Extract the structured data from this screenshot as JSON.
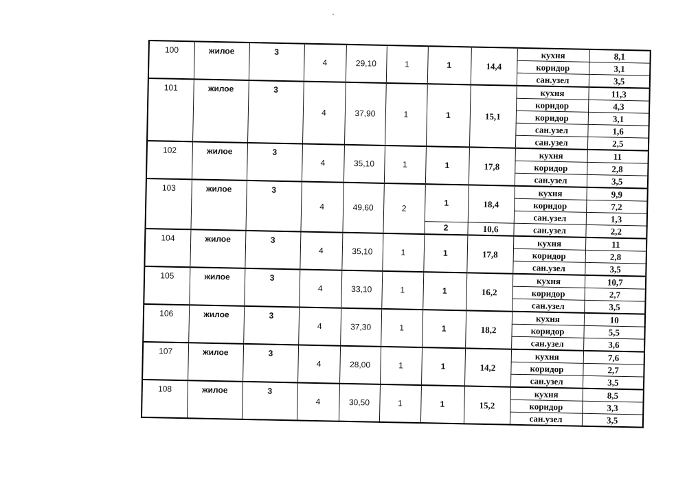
{
  "table": {
    "apartments": [
      {
        "id": "100",
        "type": "жилое",
        "floor": "3",
        "c4": "4",
        "area": "29,10",
        "rooms_count": "1",
        "rooms": [
          {
            "num": "1",
            "area": "14,4"
          }
        ],
        "extras": [
          {
            "name": "кухня",
            "value": "8,1"
          },
          {
            "name": "коридор",
            "value": "3,1"
          },
          {
            "name": "сан.узел",
            "value": "3,5"
          }
        ]
      },
      {
        "id": "101",
        "type": "жилое",
        "floor": "3",
        "c4": "4",
        "area": "37,90",
        "rooms_count": "1",
        "rooms": [
          {
            "num": "1",
            "area": "15,1"
          }
        ],
        "extras": [
          {
            "name": "кухня",
            "value": "11,3"
          },
          {
            "name": "коридор",
            "value": "4,3"
          },
          {
            "name": "коридор",
            "value": "3,1"
          },
          {
            "name": "сан.узел",
            "value": "1,6"
          },
          {
            "name": "сан.узел",
            "value": "2,5"
          }
        ]
      },
      {
        "id": "102",
        "type": "жилое",
        "floor": "3",
        "c4": "4",
        "area": "35,10",
        "rooms_count": "1",
        "rooms": [
          {
            "num": "1",
            "area": "17,8"
          }
        ],
        "extras": [
          {
            "name": "кухня",
            "value": "11"
          },
          {
            "name": "коридор",
            "value": "2,8"
          },
          {
            "name": "сан.узел",
            "value": "3,5"
          }
        ]
      },
      {
        "id": "103",
        "type": "жилое",
        "floor": "3",
        "c4": "4",
        "area": "49,60",
        "rooms_count": "2",
        "rooms": [
          {
            "num": "1",
            "area": "18,4",
            "span": 3
          },
          {
            "num": "2",
            "area": "10,6",
            "span": 1
          }
        ],
        "extras": [
          {
            "name": "кухня",
            "value": "9,9"
          },
          {
            "name": "коридор",
            "value": "7,2"
          },
          {
            "name": "сан.узел",
            "value": "1,3"
          },
          {
            "name": "сан.узел",
            "value": "2,2"
          }
        ]
      },
      {
        "id": "104",
        "type": "жилое",
        "floor": "3",
        "c4": "4",
        "area": "35,10",
        "rooms_count": "1",
        "rooms": [
          {
            "num": "1",
            "area": "17,8"
          }
        ],
        "extras": [
          {
            "name": "кухня",
            "value": "11"
          },
          {
            "name": "коридор",
            "value": "2,8"
          },
          {
            "name": "сан.узел",
            "value": "3,5"
          }
        ]
      },
      {
        "id": "105",
        "type": "жилое",
        "floor": "3",
        "c4": "4",
        "area": "33,10",
        "rooms_count": "1",
        "rooms": [
          {
            "num": "1",
            "area": "16,2"
          }
        ],
        "extras": [
          {
            "name": "кухня",
            "value": "10,7"
          },
          {
            "name": "коридор",
            "value": "2,7"
          },
          {
            "name": "сан.узел",
            "value": "3,5"
          }
        ]
      },
      {
        "id": "106",
        "type": "жилое",
        "floor": "3",
        "c4": "4",
        "area": "37,30",
        "rooms_count": "1",
        "rooms": [
          {
            "num": "1",
            "area": "18,2"
          }
        ],
        "extras": [
          {
            "name": "кухня",
            "value": "10"
          },
          {
            "name": "коридор",
            "value": "5,5"
          },
          {
            "name": "сан.узел",
            "value": "3,6"
          }
        ]
      },
      {
        "id": "107",
        "type": "жилое",
        "floor": "3",
        "c4": "4",
        "area": "28,00",
        "rooms_count": "1",
        "rooms": [
          {
            "num": "1",
            "area": "14,2"
          }
        ],
        "extras": [
          {
            "name": "кухня",
            "value": "7,6"
          },
          {
            "name": "коридор",
            "value": "2,7"
          },
          {
            "name": "сан.узел",
            "value": "3,5"
          }
        ]
      },
      {
        "id": "108",
        "type": "жилое",
        "floor": "3",
        "c4": "4",
        "area": "30,50",
        "rooms_count": "1",
        "rooms": [
          {
            "num": "1",
            "area": "15,2"
          }
        ],
        "extras": [
          {
            "name": "кухня",
            "value": "8,5"
          },
          {
            "name": "коридор",
            "value": "3,3"
          },
          {
            "name": "сан.узел",
            "value": "3,5"
          }
        ]
      }
    ]
  }
}
